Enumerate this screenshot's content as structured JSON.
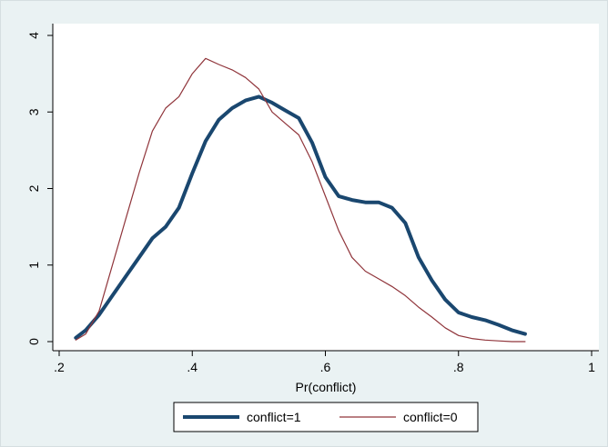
{
  "chart_data": {
    "type": "line",
    "title": "",
    "xlabel": "Pr(conflict)",
    "ylabel": "",
    "xlim": [
      0.2,
      1.0
    ],
    "ylim": [
      0,
      4
    ],
    "x_ticks": [
      {
        "value": 0.2,
        "label": ".2"
      },
      {
        "value": 0.4,
        "label": ".4"
      },
      {
        "value": 0.6,
        "label": ".6"
      },
      {
        "value": 0.8,
        "label": ".8"
      },
      {
        "value": 1.0,
        "label": "1"
      }
    ],
    "y_ticks": [
      {
        "value": 0,
        "label": "0"
      },
      {
        "value": 1,
        "label": "1"
      },
      {
        "value": 2,
        "label": "2"
      },
      {
        "value": 3,
        "label": "3"
      },
      {
        "value": 4,
        "label": "4"
      }
    ],
    "grid": false,
    "legend_position": "bottom",
    "colors": {
      "background": "#eaf2f3",
      "plot_background": "#ffffff",
      "axis": "#000000"
    },
    "series": [
      {
        "name": "conflict=1",
        "color": "#1a476f",
        "line_width": "thick",
        "points": [
          [
            0.225,
            0.05
          ],
          [
            0.24,
            0.15
          ],
          [
            0.26,
            0.35
          ],
          [
            0.28,
            0.6
          ],
          [
            0.3,
            0.85
          ],
          [
            0.32,
            1.1
          ],
          [
            0.34,
            1.35
          ],
          [
            0.36,
            1.5
          ],
          [
            0.38,
            1.75
          ],
          [
            0.4,
            2.2
          ],
          [
            0.42,
            2.62
          ],
          [
            0.44,
            2.9
          ],
          [
            0.46,
            3.05
          ],
          [
            0.48,
            3.15
          ],
          [
            0.5,
            3.2
          ],
          [
            0.52,
            3.12
          ],
          [
            0.54,
            3.02
          ],
          [
            0.56,
            2.92
          ],
          [
            0.58,
            2.6
          ],
          [
            0.6,
            2.15
          ],
          [
            0.62,
            1.9
          ],
          [
            0.64,
            1.85
          ],
          [
            0.66,
            1.82
          ],
          [
            0.68,
            1.82
          ],
          [
            0.7,
            1.75
          ],
          [
            0.72,
            1.55
          ],
          [
            0.74,
            1.1
          ],
          [
            0.76,
            0.8
          ],
          [
            0.78,
            0.55
          ],
          [
            0.8,
            0.38
          ],
          [
            0.82,
            0.32
          ],
          [
            0.84,
            0.28
          ],
          [
            0.86,
            0.22
          ],
          [
            0.88,
            0.15
          ],
          [
            0.9,
            0.1
          ]
        ]
      },
      {
        "name": "conflict=0",
        "color": "#90353b",
        "line_width": "thin",
        "points": [
          [
            0.225,
            0.02
          ],
          [
            0.24,
            0.1
          ],
          [
            0.26,
            0.4
          ],
          [
            0.28,
            1.0
          ],
          [
            0.3,
            1.6
          ],
          [
            0.32,
            2.2
          ],
          [
            0.34,
            2.75
          ],
          [
            0.36,
            3.05
          ],
          [
            0.38,
            3.2
          ],
          [
            0.4,
            3.5
          ],
          [
            0.42,
            3.7
          ],
          [
            0.44,
            3.62
          ],
          [
            0.46,
            3.55
          ],
          [
            0.48,
            3.45
          ],
          [
            0.5,
            3.3
          ],
          [
            0.52,
            3.0
          ],
          [
            0.54,
            2.85
          ],
          [
            0.56,
            2.7
          ],
          [
            0.58,
            2.35
          ],
          [
            0.6,
            1.9
          ],
          [
            0.62,
            1.45
          ],
          [
            0.64,
            1.1
          ],
          [
            0.66,
            0.92
          ],
          [
            0.68,
            0.82
          ],
          [
            0.7,
            0.72
          ],
          [
            0.72,
            0.6
          ],
          [
            0.74,
            0.45
          ],
          [
            0.76,
            0.32
          ],
          [
            0.78,
            0.18
          ],
          [
            0.8,
            0.08
          ],
          [
            0.82,
            0.04
          ],
          [
            0.84,
            0.02
          ],
          [
            0.86,
            0.01
          ],
          [
            0.88,
            0.0
          ],
          [
            0.9,
            0.0
          ]
        ]
      }
    ]
  }
}
